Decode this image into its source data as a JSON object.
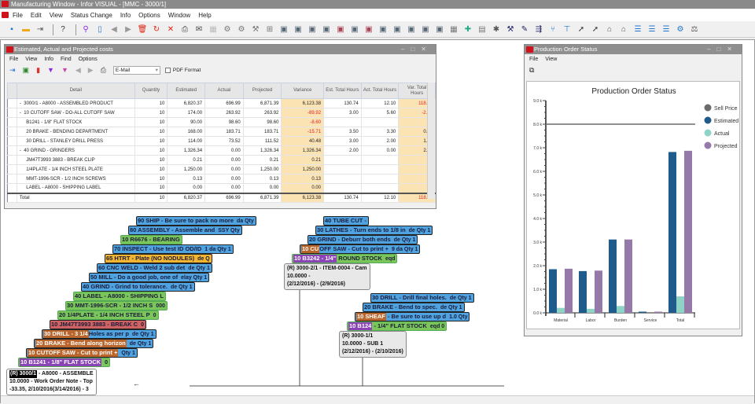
{
  "app": {
    "title": "Manufacturing Window - Infor VISUAL - [MMC - 3000/1]",
    "menu": [
      "File",
      "Edit",
      "View",
      "Status Change",
      "Info",
      "Options",
      "Window",
      "Help"
    ],
    "toolbar_icons": [
      {
        "name": "new-icon",
        "glyph": "▪",
        "color": "#1e73d2"
      },
      {
        "name": "open-folder-icon",
        "glyph": "▬",
        "color": "#f0a81c"
      },
      {
        "name": "exit-icon",
        "glyph": "⇥",
        "color": "#555"
      },
      {
        "sep": true
      },
      {
        "name": "help-icon",
        "glyph": "?",
        "color": "#333"
      },
      {
        "sep": true
      },
      {
        "name": "search-icon",
        "glyph": "⚲",
        "color": "#8a2be2"
      },
      {
        "name": "document-icon",
        "glyph": "▯",
        "color": "#1e73d2"
      },
      {
        "name": "prev-icon",
        "glyph": "◀",
        "color": "#999"
      },
      {
        "name": "next-icon",
        "glyph": "▶",
        "color": "#999"
      },
      {
        "name": "delete-icon",
        "glyph": "🗑",
        "color": "#d21"
      },
      {
        "name": "refresh-icon",
        "glyph": "↻",
        "color": "#d21"
      },
      {
        "name": "close-icon",
        "glyph": "✕",
        "color": "#d21"
      },
      {
        "name": "print-icon",
        "glyph": "⎙",
        "color": "#444"
      },
      {
        "name": "mail-icon",
        "glyph": "✉",
        "color": "#444"
      },
      {
        "name": "spreadsheet-icon",
        "glyph": "▦",
        "color": "#bbb"
      },
      {
        "name": "routing-icon",
        "glyph": "⚙",
        "color": "#777"
      },
      {
        "name": "add-routing-icon",
        "glyph": "⚙",
        "color": "#777"
      },
      {
        "name": "tool-icon",
        "glyph": "⚒",
        "color": "#777"
      },
      {
        "name": "tree-icon",
        "glyph": "⊞",
        "color": "#777"
      },
      {
        "name": "view-leg-icon",
        "glyph": "▣",
        "color": "#567"
      },
      {
        "name": "view-material-icon",
        "glyph": "▣",
        "color": "#567"
      },
      {
        "name": "view-tree-icon",
        "glyph": "▣",
        "color": "#567"
      },
      {
        "name": "view-ops-icon",
        "glyph": "▣",
        "color": "#567"
      },
      {
        "name": "view-x-icon",
        "glyph": "▣",
        "color": "#a45"
      },
      {
        "name": "view-find-icon",
        "glyph": "▣",
        "color": "#567"
      },
      {
        "name": "view-clear-icon",
        "glyph": "▣",
        "color": "#a45"
      },
      {
        "name": "view-a-icon",
        "glyph": "▣",
        "color": "#567"
      },
      {
        "name": "view-b-icon",
        "glyph": "▣",
        "color": "#567"
      },
      {
        "name": "view-c-icon",
        "glyph": "▣",
        "color": "#567"
      },
      {
        "name": "view-d-icon",
        "glyph": "▣",
        "color": "#567"
      },
      {
        "name": "view-e-icon",
        "glyph": "▣",
        "color": "#567"
      },
      {
        "name": "grid-icon",
        "glyph": "▦",
        "color": "#777"
      },
      {
        "name": "chart-add-icon",
        "glyph": "✚",
        "color": "#2a8"
      },
      {
        "name": "table-icon",
        "glyph": "▤",
        "color": "#777"
      },
      {
        "name": "star-icon",
        "glyph": "✱",
        "color": "#555"
      },
      {
        "name": "hammer-icon",
        "glyph": "⚒",
        "color": "#226"
      },
      {
        "name": "wrench-icon",
        "glyph": "✎",
        "color": "#226"
      },
      {
        "name": "priority-icon",
        "glyph": "⇶",
        "color": "#226"
      },
      {
        "name": "fork-icon",
        "glyph": "⑂",
        "color": "#1e73d2"
      },
      {
        "name": "pin-icon",
        "glyph": "⊤",
        "color": "#1e73d2"
      },
      {
        "name": "arrow-up-icon",
        "glyph": "➚",
        "color": "#333"
      },
      {
        "name": "arrow-icon",
        "glyph": "➚",
        "color": "#333"
      },
      {
        "name": "tag-icon",
        "glyph": "⌂",
        "color": "#555"
      },
      {
        "name": "tag2-icon",
        "glyph": "⌂",
        "color": "#555"
      },
      {
        "name": "list-check-icon",
        "glyph": "☰",
        "color": "#1e73d2"
      },
      {
        "name": "list-x-icon",
        "glyph": "☰",
        "color": "#1e73d2"
      },
      {
        "name": "list-icon",
        "glyph": "☰",
        "color": "#1e73d2"
      },
      {
        "name": "settings-icon",
        "glyph": "⚙",
        "color": "#1e73d2"
      },
      {
        "name": "scale-icon",
        "glyph": "⚖",
        "color": "#555"
      }
    ]
  },
  "costs": {
    "title": "Estimated, Actual and Projected costs",
    "menu": [
      "File",
      "View",
      "Info",
      "Find",
      "Options"
    ],
    "email_select": "E-Mail",
    "pdf_label": "PDF Format",
    "columns": [
      "Detail",
      "Quantity",
      "Estimated",
      "Actual",
      "Projected",
      "Variance",
      "Est. Total Hours",
      "Act. Total Hours",
      "Var. Total Hours"
    ],
    "rows": [
      [
        "-  3000/1 - A8000 - ASSEMBLED PRODUCT",
        "10",
        "6,820.37",
        "696.99",
        "6,871.39",
        "6,123.38",
        "130.74",
        "12.10",
        "118.64"
      ],
      [
        "-  10 CUTOFF SAW - DO-ALL CUTOFF SAW",
        "10",
        "174.00",
        "263.92",
        "263.92",
        "-89.92",
        "3.00",
        "5.60",
        "-2.60"
      ],
      [
        "     B1241 - 1/8\" FLAT STOCK",
        "10",
        "90.00",
        "98.60",
        "98.60",
        "-8.60",
        "",
        "",
        ""
      ],
      [
        "     20 BRAKE - BENDING DEPARTMENT",
        "10",
        "168.00",
        "183.71",
        "183.71",
        "-15.71",
        "3.50",
        "3.30",
        "0.20"
      ],
      [
        "     30 DRILL - STANLEY DRILL PRESS",
        "10",
        "114.00",
        "73.52",
        "111.52",
        "40.48",
        "3.00",
        "2.00",
        "1.00"
      ],
      [
        "-  40 GRIND - GRINDERS",
        "10",
        "1,326.34",
        "0.00",
        "1,326.34",
        "1,326.34",
        "2.00",
        "0.00",
        "2.00"
      ],
      [
        "     JM47T3993 3883 - BREAK CLIP",
        "10",
        "0.21",
        "0.00",
        "0.21",
        "0.21",
        "",
        "",
        ""
      ],
      [
        "     1/4PLATE - 1/4 INCH STEEL PLATE",
        "10",
        "1,250.00",
        "0.00",
        "1,250.00",
        "1,250.00",
        "",
        "",
        ""
      ],
      [
        "     MMT-1996-SCR - 1/2 INCH SCREWS",
        "10",
        "0.13",
        "0.00",
        "0.13",
        "0.13",
        "",
        "",
        ""
      ],
      [
        "     LABEL - A8000 - SHIPPING LABEL",
        "10",
        "0.00",
        "0.00",
        "0.00",
        "0.00",
        "",
        "",
        ""
      ]
    ],
    "total": [
      "Total",
      "10",
      "6,820.37",
      "696.99",
      "6,871.39",
      "6,123.38",
      "130.74",
      "12.10",
      "118.64"
    ]
  },
  "diagram": {
    "main_stack": [
      {
        "label": "90 SHIP -  Be sure to pack no more",
        "extra": "da\nQty",
        "color": "blue"
      },
      {
        "label": "80 ASSEMBLY -  Assemble and",
        "extra": "SSY\nQty",
        "color": "blue"
      },
      {
        "label": "10 R6676 - BEARING",
        "extra": "",
        "color": "green"
      },
      {
        "label": "70 INSPECT -  Use test ID OD/ID",
        "extra": "1 da\nQty 1",
        "color": "blue"
      },
      {
        "label": "65 HTRT -  Plate (NO NODULES)",
        "extra": "de\nQ",
        "color": "yellow"
      },
      {
        "label": "60 CNC WELD -  Weld 2 sub det",
        "extra": "de\nQty 1",
        "color": "blue"
      },
      {
        "label": "50 MILL -  Do a good job, one of",
        "extra": "elay\nQty 1",
        "color": "blue"
      },
      {
        "label": "40 GRIND -  Grind to tolerance.",
        "extra": "de\nQty 1",
        "color": "blue"
      },
      {
        "label": "40 LABEL - A8000 - SHIPPING L",
        "extra": "",
        "color": "green"
      },
      {
        "label": "30 MMT-1996-SCR - 1/2 INCH S",
        "extra": "000",
        "color": "green"
      },
      {
        "label": "20 1/4PLATE - 1/4 INCH STEEL P",
        "extra": "0",
        "color": "green"
      },
      {
        "label": "10 JM47T3993 3883 - BREAK C",
        "extra": "0",
        "color": "red"
      },
      {
        "label": "Holes as per p",
        "head": "30 DRILL -  3 1/4",
        "head_color": "brown",
        "extra": "de\nQty 1",
        "color": "blue"
      },
      {
        "label": "",
        "head": "20 BRAKE -  Bend along horizon",
        "head_color": "brown",
        "extra": "de\nQty 1",
        "color": "blue"
      },
      {
        "label": "",
        "head": "10 CUTOFF SAW -  Cut to print +",
        "head_color": "brown",
        "extra": "Qty 1",
        "color": "blue"
      },
      {
        "label": "",
        "head": "10 B1241 - 1/8\" FLAT STOCK",
        "head_color": "purple",
        "extra": "0",
        "color": "green"
      }
    ],
    "root": {
      "head": "(R) 3000/1",
      "rest": " - A8000 - ASSEMBLE",
      "line2": "10.0000 - Work Order Note - Top",
      "line3": "-33.35, 2/10/2016(3/14/2016) - 3"
    },
    "sub1_stack": [
      {
        "label": "40 TUBE CUT -",
        "extra": "",
        "color": "blue"
      },
      {
        "label": "30 LATHES -  Turn ends to 1/8 in",
        "extra": "de\nQty 1",
        "color": "blue"
      },
      {
        "label": "20 GRIND -  Deburr both ends",
        "extra": "de\nQty 1",
        "color": "blue"
      },
      {
        "label": "OFF SAW -  Cut to print +",
        "head": "10 CU",
        "head_color": "brown",
        "extra": "9 da\nQty 1",
        "color": "blue"
      },
      {
        "label": " ROUND STOCK",
        "head": "10 B3242 - 1/4\"",
        "head_color": "purple",
        "extra": "eqd",
        "color": "green"
      }
    ],
    "sub1_root": {
      "line1": "(R) 3000-2/1 - ITEM-0004 - Cam",
      "line2": "10.0000 -",
      "line3": "(2/12/2016) - (2/9/2016)"
    },
    "sub2_stack": [
      {
        "label": "30 DRILL -  Drill final holes.",
        "extra": "de\nQty 1",
        "color": "blue"
      },
      {
        "label": "20 BRAKE -  Bend to spec.",
        "extra": "de\nQty 1",
        "color": "blue"
      },
      {
        "label": " -  Be sure to use up d",
        "head": "10 SHEAF",
        "head_color": "brown",
        "extra": "1.0\nQty",
        "color": "blue"
      },
      {
        "label": " - 1/4\" FLAT STOCK",
        "head": "10 B124",
        "head_color": "purple",
        "extra": "eqd\n0",
        "color": "green"
      }
    ],
    "sub2_root": {
      "line1": "(R) 3000-1/1",
      "line2": "10.0000 -  SUB 1",
      "line3": "(2/12/2016) - (2/10/2016)"
    }
  },
  "status_window": {
    "title": "Production Order Status",
    "menu": [
      "File",
      "View"
    ]
  },
  "chart_data": {
    "type": "bar",
    "title": "Production Order Status",
    "categories": [
      "Material",
      "Labor",
      "Burden",
      "Service",
      "Total"
    ],
    "series": [
      {
        "name": "Estimated",
        "color": "#1f5c8b",
        "values": [
          1850,
          1770,
          3110,
          50,
          6820.37
        ]
      },
      {
        "name": "Actual",
        "color": "#8fd3c6",
        "values": [
          210,
          170,
          290,
          0,
          696.99
        ]
      },
      {
        "name": "Projected",
        "color": "#9579a8",
        "values": [
          1870,
          1790,
          3110,
          50,
          6871.39
        ]
      }
    ],
    "reference_line": {
      "name": "Sell Price",
      "color": "#6b6b6b",
      "value": 8000
    },
    "ylim": [
      0,
      9000
    ],
    "yticks": [
      "0.0 k",
      "1.0 k",
      "2.0 k",
      "3.0 k",
      "4.0 k",
      "5.0 k",
      "6.0 k",
      "7.0 k",
      "8.0 k",
      "9.0 k"
    ],
    "legend": [
      "Sell Price",
      "Estimated",
      "Actual",
      "Projected"
    ],
    "legend_position": "right",
    "grid": false
  }
}
